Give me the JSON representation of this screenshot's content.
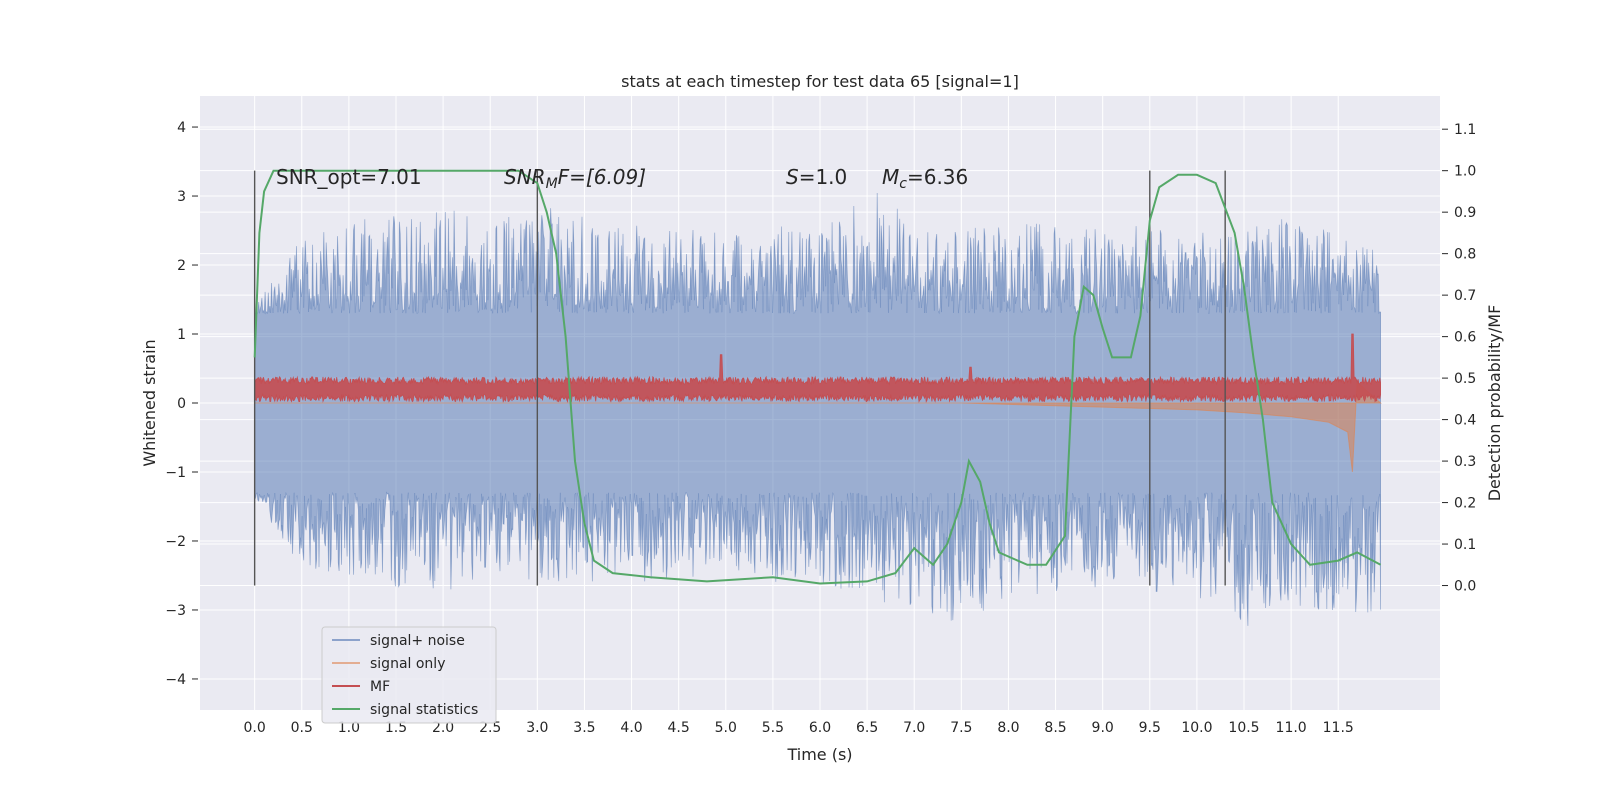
{
  "chart_data": {
    "type": "line",
    "title": "stats at each timestep for test data 65 [signal=1]",
    "xlabel": "Time (s)",
    "ylabel": "Whitened strain",
    "y2label": "Detection probability/MF",
    "xlim": [
      -0.58,
      12.58
    ],
    "ylim": [
      -4.45,
      4.45
    ],
    "y2lim": [
      -0.3,
      1.18
    ],
    "x_ticks": [
      "0.0",
      "0.5",
      "1.0",
      "1.5",
      "2.0",
      "2.5",
      "3.0",
      "3.5",
      "4.0",
      "4.5",
      "5.0",
      "5.5",
      "6.0",
      "6.5",
      "7.0",
      "7.5",
      "8.0",
      "8.5",
      "9.0",
      "9.5",
      "10.0",
      "10.5",
      "11.0",
      "11.5"
    ],
    "y_ticks": [
      "4",
      "3",
      "2",
      "1",
      "0",
      "−1",
      "−2",
      "−3",
      "−4"
    ],
    "y2_ticks": [
      "1.1",
      "1.0",
      "0.9",
      "0.8",
      "0.7",
      "0.6",
      "0.5",
      "0.4",
      "0.3",
      "0.2",
      "0.1",
      "0.0"
    ],
    "grid": true,
    "legend_position": "lower-left",
    "annotations": {
      "snr_opt": "SNR_opt=7.01",
      "snr_mf_italic": "SNR",
      "snr_mf_sub": "M",
      "snr_mf_rest": "F=[6.09]",
      "s_italic": "S",
      "s_rest": "=1.0",
      "mc_italic": "M",
      "mc_sub": "c",
      "mc_rest": "=6.36"
    },
    "vlines_x": [
      0.0,
      3.0,
      9.5,
      10.3
    ],
    "series": [
      {
        "name": "signal+ noise",
        "color": "#4c72b0",
        "x_range": [
          0.0,
          11.95
        ],
        "envelope_upper": [
          [
            0.0,
            1.4
          ],
          [
            0.5,
            2.4
          ],
          [
            1.0,
            2.6
          ],
          [
            1.8,
            3.0
          ],
          [
            2.5,
            2.6
          ],
          [
            3.0,
            2.9
          ],
          [
            4.0,
            2.6
          ],
          [
            5.0,
            2.5
          ],
          [
            6.0,
            2.6
          ],
          [
            6.6,
            3.1
          ],
          [
            7.0,
            2.6
          ],
          [
            8.0,
            2.6
          ],
          [
            9.0,
            2.6
          ],
          [
            10.0,
            2.5
          ],
          [
            11.0,
            2.7
          ],
          [
            11.95,
            2.2
          ]
        ],
        "envelope_lower": [
          [
            0.0,
            -1.4
          ],
          [
            0.5,
            -2.4
          ],
          [
            1.0,
            -2.5
          ],
          [
            1.8,
            -2.8
          ],
          [
            2.5,
            -2.6
          ],
          [
            3.0,
            -2.6
          ],
          [
            4.0,
            -2.6
          ],
          [
            5.0,
            -2.5
          ],
          [
            6.0,
            -2.7
          ],
          [
            7.0,
            -3.0
          ],
          [
            7.5,
            -3.2
          ],
          [
            8.0,
            -2.8
          ],
          [
            9.0,
            -2.7
          ],
          [
            10.0,
            -2.8
          ],
          [
            10.6,
            -3.3
          ],
          [
            11.0,
            -3.0
          ],
          [
            11.95,
            -3.1
          ]
        ]
      },
      {
        "name": "signal only",
        "color": "#dd8452",
        "points": [
          [
            0.0,
            0.0
          ],
          [
            7.5,
            0.0
          ],
          [
            8.0,
            -0.02
          ],
          [
            9.0,
            -0.06
          ],
          [
            10.0,
            -0.1
          ],
          [
            10.5,
            -0.14
          ],
          [
            11.0,
            -0.2
          ],
          [
            11.4,
            -0.28
          ],
          [
            11.6,
            -0.42
          ],
          [
            11.65,
            -1.0
          ],
          [
            11.7,
            0.3
          ],
          [
            11.95,
            0.0
          ]
        ]
      },
      {
        "name": "MF",
        "color": "#c44e52",
        "base": 0.2,
        "half_width": 0.18,
        "spikes": [
          [
            4.95,
            0.7
          ],
          [
            7.6,
            0.52
          ],
          [
            11.65,
            1.0
          ]
        ]
      },
      {
        "name": "signal statistics",
        "color": "#55a868",
        "axis": "right",
        "points": [
          [
            0.0,
            0.55
          ],
          [
            0.05,
            0.85
          ],
          [
            0.1,
            0.95
          ],
          [
            0.2,
            1.0
          ],
          [
            0.5,
            1.0
          ],
          [
            1.0,
            1.0
          ],
          [
            2.0,
            1.0
          ],
          [
            2.5,
            1.0
          ],
          [
            2.8,
            1.0
          ],
          [
            3.0,
            0.97
          ],
          [
            3.1,
            0.9
          ],
          [
            3.2,
            0.8
          ],
          [
            3.3,
            0.6
          ],
          [
            3.4,
            0.3
          ],
          [
            3.5,
            0.15
          ],
          [
            3.6,
            0.06
          ],
          [
            3.8,
            0.03
          ],
          [
            4.2,
            0.02
          ],
          [
            4.8,
            0.01
          ],
          [
            5.5,
            0.02
          ],
          [
            6.0,
            0.005
          ],
          [
            6.5,
            0.01
          ],
          [
            6.8,
            0.03
          ],
          [
            7.0,
            0.09
          ],
          [
            7.1,
            0.07
          ],
          [
            7.2,
            0.05
          ],
          [
            7.35,
            0.1
          ],
          [
            7.5,
            0.2
          ],
          [
            7.58,
            0.3
          ],
          [
            7.7,
            0.25
          ],
          [
            7.8,
            0.15
          ],
          [
            7.9,
            0.08
          ],
          [
            8.2,
            0.05
          ],
          [
            8.4,
            0.05
          ],
          [
            8.6,
            0.12
          ],
          [
            8.7,
            0.6
          ],
          [
            8.8,
            0.72
          ],
          [
            8.9,
            0.7
          ],
          [
            9.0,
            0.62
          ],
          [
            9.1,
            0.55
          ],
          [
            9.3,
            0.55
          ],
          [
            9.4,
            0.65
          ],
          [
            9.5,
            0.88
          ],
          [
            9.6,
            0.96
          ],
          [
            9.8,
            0.99
          ],
          [
            10.0,
            0.99
          ],
          [
            10.2,
            0.97
          ],
          [
            10.4,
            0.85
          ],
          [
            10.5,
            0.72
          ],
          [
            10.6,
            0.55
          ],
          [
            10.7,
            0.4
          ],
          [
            10.8,
            0.2
          ],
          [
            11.0,
            0.1
          ],
          [
            11.2,
            0.05
          ],
          [
            11.5,
            0.06
          ],
          [
            11.7,
            0.08
          ],
          [
            11.95,
            0.05
          ]
        ]
      }
    ]
  }
}
